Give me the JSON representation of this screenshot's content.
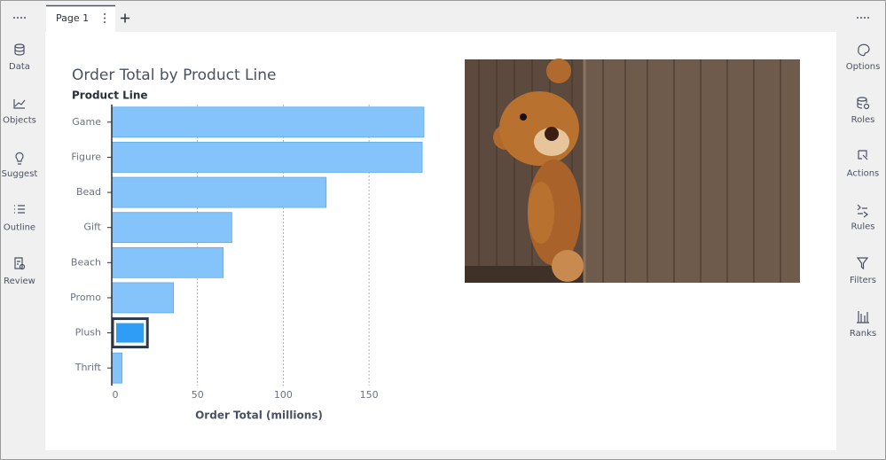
{
  "tab": {
    "label": "Page 1"
  },
  "left_panel": [
    "Data",
    "Objects",
    "Suggest",
    "Outline",
    "Review"
  ],
  "right_panel": [
    "Options",
    "Roles",
    "Actions",
    "Rules",
    "Filters",
    "Ranks"
  ],
  "chart_data": {
    "type": "bar",
    "orientation": "horizontal",
    "title": "Order Total by Product Line",
    "y_label": "Product Line",
    "x_label": "Order Total (millions)",
    "categories": [
      "Game",
      "Figure",
      "Bead",
      "Gift",
      "Beach",
      "Promo",
      "Plush",
      "Thrift"
    ],
    "values": [
      182,
      181,
      125,
      70,
      65,
      36,
      12,
      6
    ],
    "color": "#84c4fb",
    "selected_index": 6,
    "selected_color": "#2f9cf6",
    "xlim": [
      0,
      182
    ],
    "xticks": [
      0,
      50,
      100,
      150
    ],
    "grid": true
  }
}
